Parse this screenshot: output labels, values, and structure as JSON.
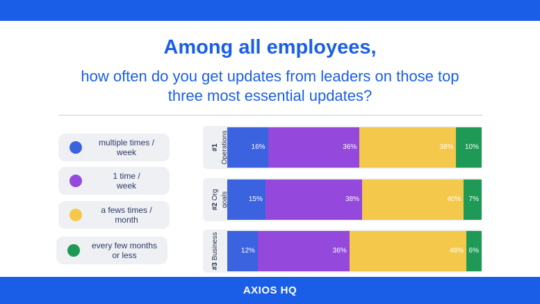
{
  "title": "Among all employees,",
  "subtitle_line1": "how often do you get updates from leaders on those top",
  "subtitle_line2": "three most essential updates?",
  "brand": "AXIOS HQ",
  "colors": {
    "blue": "#3b63e0",
    "purple": "#9449dc",
    "yellow": "#f4c84b",
    "green": "#1e9a56",
    "accent": "#1a5ee8"
  },
  "chart_data": {
    "type": "bar",
    "stacked": true,
    "orientation": "horizontal",
    "categories": [
      {
        "rank": "#1",
        "name": "Operations"
      },
      {
        "rank": "#2",
        "name": "Org goals"
      },
      {
        "rank": "#3",
        "name": "Business"
      }
    ],
    "series": [
      {
        "name": "multiple times / week",
        "color": "#3b63e0",
        "values": [
          16,
          15,
          12
        ]
      },
      {
        "name": "1 time / week",
        "color": "#9449dc",
        "values": [
          36,
          38,
          36
        ]
      },
      {
        "name": "a fews times / month",
        "color": "#f4c84b",
        "values": [
          38,
          40,
          46
        ]
      },
      {
        "name": "every few months or less",
        "color": "#1e9a56",
        "values": [
          10,
          7,
          6
        ]
      }
    ],
    "data_labels": [
      [
        "16%",
        "36%",
        "38%",
        "10%"
      ],
      [
        "15%",
        "38%",
        "40%",
        "7%"
      ],
      [
        "12%",
        "36%",
        "46%",
        "6%"
      ]
    ],
    "legend": [
      {
        "line1": "multiple times /",
        "line2": "week"
      },
      {
        "line1": "1 time /",
        "line2": "week"
      },
      {
        "line1": "a fews times /",
        "line2": "month"
      },
      {
        "line1": "every few months",
        "line2": "or less"
      }
    ],
    "legend_position": "left",
    "xlim": [
      0,
      100
    ],
    "grid": false
  }
}
